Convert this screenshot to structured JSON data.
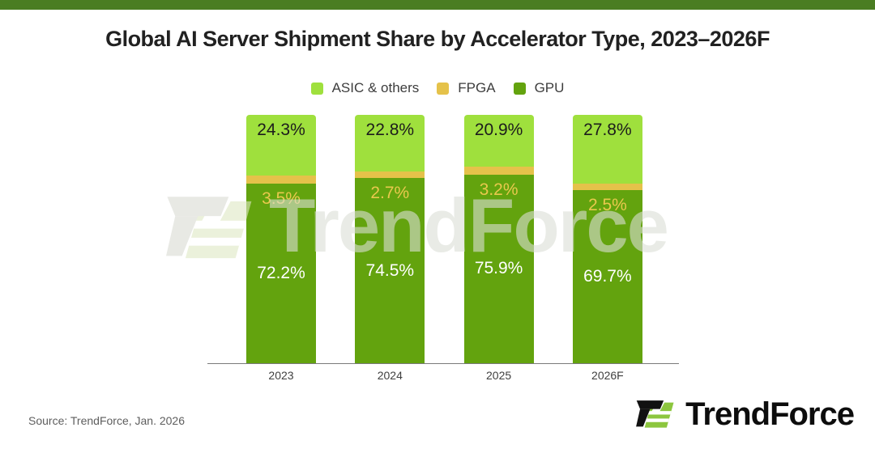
{
  "title": "Global AI Server Shipment Share by Accelerator Type, 2023–2026F",
  "source": "Source: TrendForce, Jan. 2026",
  "watermark": {
    "text": "TrendForce"
  },
  "logo": {
    "text": "TrendForce"
  },
  "colors": {
    "top_border": "#4a7d22",
    "asic": "#9fe03d",
    "fpga": "#e5c24a",
    "gpu": "#63a30e",
    "fpga_label": "#e9c84d",
    "logo_black": "#111111",
    "logo_green": "#8cc63e",
    "watermark_dark": "#d9dbd3",
    "watermark_green": "#dfe8c4",
    "watermark_text": "#dcdfd6"
  },
  "chart_data": {
    "type": "bar",
    "stacked": true,
    "title": "Global AI Server Shipment Share by Accelerator Type, 2023–2026F",
    "categories": [
      "2023",
      "2024",
      "2025",
      "2026F"
    ],
    "series": [
      {
        "name": "ASIC & others",
        "values": [
          24.3,
          22.8,
          20.9,
          27.8
        ],
        "color": "#9fe03d"
      },
      {
        "name": "FPGA",
        "values": [
          3.5,
          2.7,
          3.2,
          2.5
        ],
        "color": "#e5c24a"
      },
      {
        "name": "GPU",
        "values": [
          72.2,
          74.5,
          75.9,
          69.7
        ],
        "color": "#63a30e"
      }
    ],
    "value_suffix": "%",
    "ylim": [
      0,
      100
    ],
    "grid": false,
    "legend_position": "top",
    "xlabel": "",
    "ylabel": ""
  }
}
